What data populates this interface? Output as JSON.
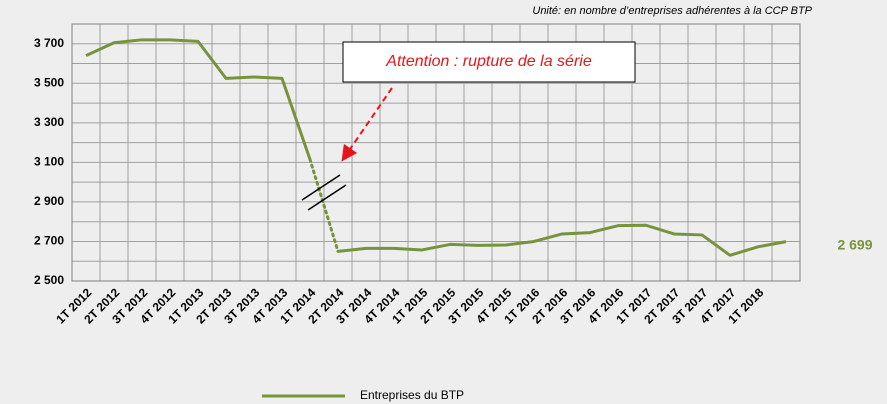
{
  "chart_data": {
    "type": "line",
    "note": "Unité: en nombre d’entreprises adhérentes à la CCP BTP",
    "annotation": "Attention : rupture de la série",
    "categories": [
      "1T 2012",
      "2T 2012",
      "3T 2012",
      "4T 2012",
      "1T 2013",
      "2T 2013",
      "3T 2013",
      "4T 2013",
      "1T 2014",
      "2T 2014",
      "3T 2014",
      "4T 2014",
      "1T 2015",
      "2T 2015",
      "3T 2015",
      "4T 2015",
      "1T 2016",
      "2T 2016",
      "3T 2016",
      "4T 2016",
      "1T 2017",
      "2T 2017",
      "3T 2017",
      "4T 2017",
      "1T 2018",
      null
    ],
    "series": [
      {
        "name": "Entreprises du BTP",
        "color": "#77933c",
        "values": [
          3640,
          3705,
          3720,
          3720,
          3712,
          3525,
          3532,
          3525,
          3115,
          2650,
          2665,
          2665,
          2657,
          2685,
          2680,
          2682,
          2700,
          2738,
          2745,
          2780,
          2782,
          2738,
          2733,
          2630,
          2673,
          2699
        ],
        "value_labels": [
          null,
          null,
          null,
          null,
          null,
          null,
          null,
          null,
          null,
          null,
          null,
          null,
          null,
          null,
          null,
          null,
          null,
          null,
          null,
          null,
          null,
          null,
          null,
          null,
          null,
          "2 699"
        ]
      }
    ],
    "break_after": 8,
    "ylim": [
      2500,
      3800
    ],
    "yticks": [
      {
        "value": 2500,
        "label": "2 500"
      },
      {
        "value": 2700,
        "label": "2 700"
      },
      {
        "value": 2900,
        "label": "2 900"
      },
      {
        "value": 3100,
        "label": "3 100"
      },
      {
        "value": 3300,
        "label": "3 300"
      },
      {
        "value": 3500,
        "label": "3 500"
      },
      {
        "value": 3700,
        "label": "3 700"
      }
    ],
    "minor_yticks": [
      2600,
      2800,
      3000,
      3200,
      3400,
      3600,
      3800
    ],
    "grid": true
  }
}
